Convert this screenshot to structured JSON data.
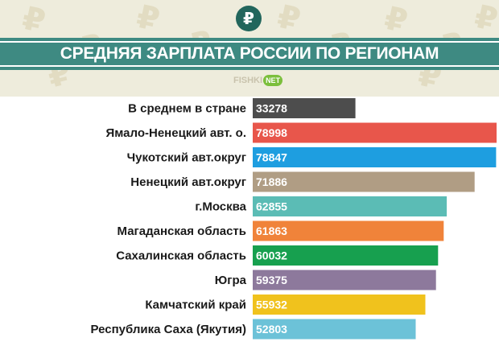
{
  "header": {
    "logo_icon": "ruble-icon",
    "logo_glyph": "₽",
    "title": "СРЕДНЯЯ ЗАРПЛАТА РОССИИ ПО РЕГИОНАМ",
    "source_main": "FISHKI",
    "source_badge": "NET",
    "watermark_glyph": "₽"
  },
  "colors": {
    "header_bg": "#eeecdc",
    "title_band": "#3e8a82",
    "logo": "#22665c"
  },
  "chart_data": {
    "type": "bar",
    "orientation": "horizontal",
    "title": "СРЕДНЯЯ ЗАРПЛАТА РОССИИ ПО РЕГИОНАМ",
    "categories": [
      "В среднем в стране",
      "Ямало-Ненецкий авт. о.",
      "Чукотский авт.округ",
      "Ненецкий авт.округ",
      "г.Москва",
      "Магаданская область",
      "Сахалинская область",
      "Югра",
      "Камчатский край",
      "Республика Саха (Якутия)"
    ],
    "values": [
      33278,
      78998,
      78847,
      71886,
      62855,
      61863,
      60032,
      59375,
      55932,
      52803
    ],
    "value_labels": [
      "33278",
      "78998",
      "78847",
      "71886",
      "62855",
      "61863",
      "60032",
      "59375",
      "55932",
      "52803"
    ],
    "colors": [
      "#4d4d4d",
      "#e8564b",
      "#1e9ee0",
      "#b09d84",
      "#5bbcb5",
      "#f0833a",
      "#17a04f",
      "#8d799c",
      "#f0c21d",
      "#6cc2d8"
    ],
    "xlim": [
      0,
      80000
    ],
    "grid": false,
    "legend": "none"
  }
}
